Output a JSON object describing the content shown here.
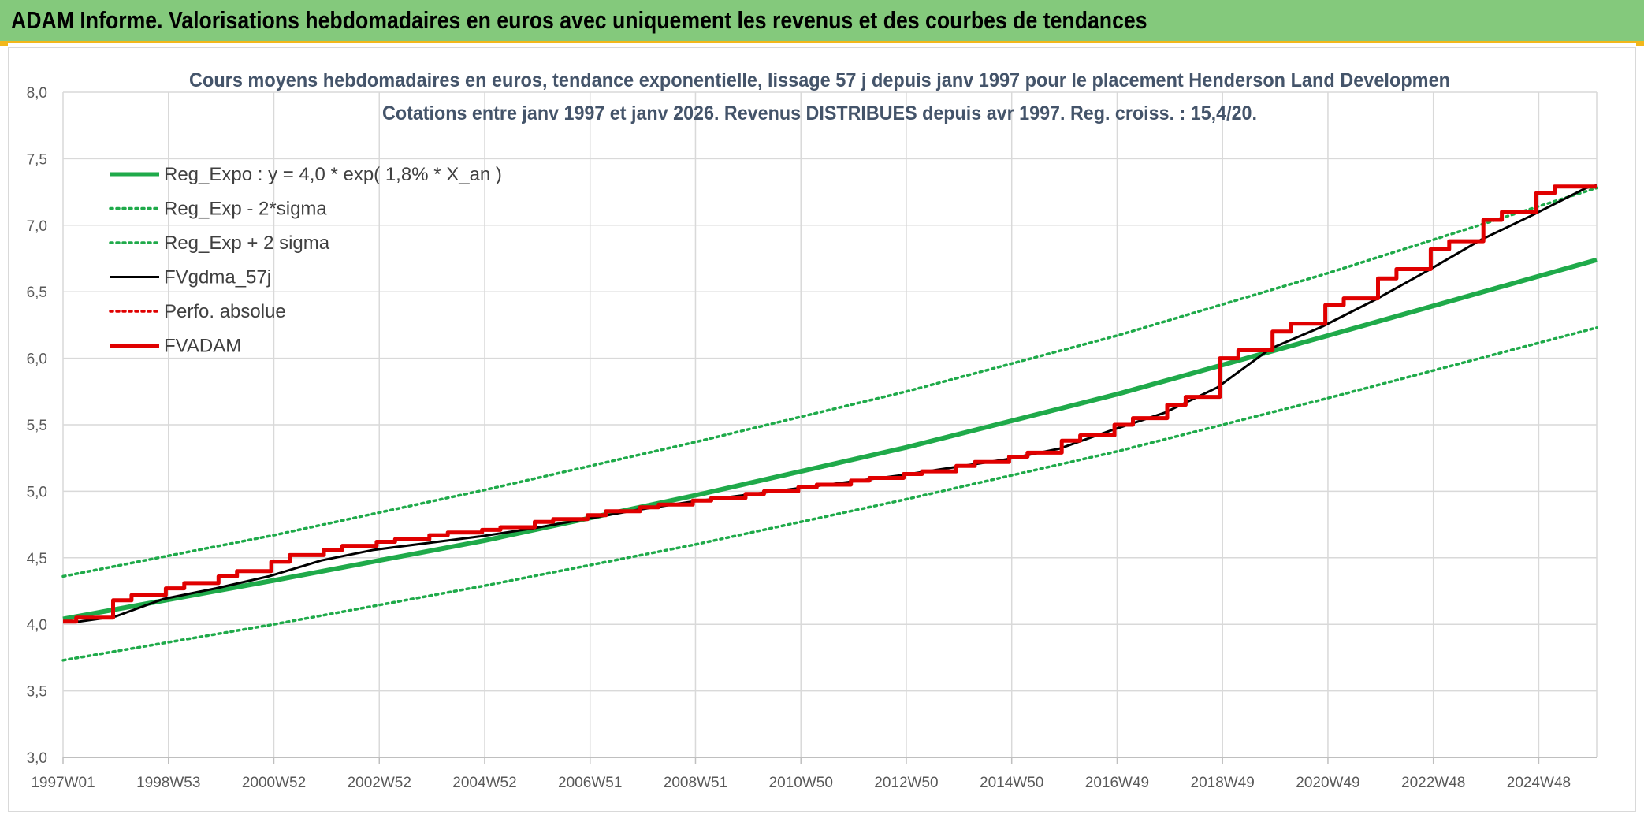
{
  "header": {
    "title": "ADAM Informe. Valorisations hebdomadaires en euros avec uniquement les revenus et des courbes de tendances"
  },
  "colors": {
    "banner": "#84c97c",
    "banner_border": "#f2b71a",
    "reg_green": "#1faa4a",
    "black": "#000000",
    "red": "#e00000",
    "grid": "#d9d9d9"
  },
  "chart_data": {
    "type": "line",
    "title_lines": [
      "Cours moyens hebdomadaires en euros, tendance exponentielle, lissage 57 j depuis janv 1997 pour le placement Henderson Land Developmen",
      "Cotations entre janv 1997 et janv 2026. Revenus DISTRIBUES depuis avr 1997. Reg. croiss. : 15,4/20."
    ],
    "ylim": [
      3.0,
      8.0
    ],
    "y_ticks": [
      "3,0",
      "3,5",
      "4,0",
      "4,5",
      "5,0",
      "5,5",
      "6,0",
      "6,5",
      "7,0",
      "7,5",
      "8,0"
    ],
    "x_range": [
      1997.0,
      2026.1
    ],
    "x_ticks": [
      {
        "label": "1997W01",
        "x": 1997.0
      },
      {
        "label": "1998W53",
        "x": 1999.0
      },
      {
        "label": "2000W52",
        "x": 2001.0
      },
      {
        "label": "2002W52",
        "x": 2003.0
      },
      {
        "label": "2004W52",
        "x": 2005.0
      },
      {
        "label": "2006W51",
        "x": 2007.0
      },
      {
        "label": "2008W51",
        "x": 2009.0
      },
      {
        "label": "2010W50",
        "x": 2011.0
      },
      {
        "label": "2012W50",
        "x": 2013.0
      },
      {
        "label": "2014W50",
        "x": 2015.0
      },
      {
        "label": "2016W49",
        "x": 2017.0
      },
      {
        "label": "2018W49",
        "x": 2019.0
      },
      {
        "label": "2020W49",
        "x": 2021.0
      },
      {
        "label": "2022W48",
        "x": 2023.0
      },
      {
        "label": "2024W48",
        "x": 2025.0
      }
    ],
    "grid": true,
    "legend_position": "top-left",
    "series": [
      {
        "name": "Reg_Expo : y = 4,0 * exp( 1,8% *  X_an )",
        "style": "solid-thick",
        "color": "#1faa4a",
        "points": [
          [
            1997.0,
            4.04
          ],
          [
            2001.0,
            4.33
          ],
          [
            2005.0,
            4.63
          ],
          [
            2009.0,
            4.97
          ],
          [
            2013.0,
            5.33
          ],
          [
            2017.0,
            5.73
          ],
          [
            2021.0,
            6.17
          ],
          [
            2026.1,
            6.74
          ]
        ]
      },
      {
        "name": "Reg_Exp - 2*sigma",
        "style": "dotted",
        "color": "#1faa4a",
        "points": [
          [
            1997.0,
            3.73
          ],
          [
            2001.0,
            4.0
          ],
          [
            2005.0,
            4.29
          ],
          [
            2009.0,
            4.6
          ],
          [
            2013.0,
            4.94
          ],
          [
            2017.0,
            5.3
          ],
          [
            2021.0,
            5.7
          ],
          [
            2026.1,
            6.23
          ]
        ]
      },
      {
        "name": "Reg_Exp + 2 sigma",
        "style": "dotted",
        "color": "#1faa4a",
        "points": [
          [
            1997.0,
            4.36
          ],
          [
            2001.0,
            4.67
          ],
          [
            2005.0,
            5.01
          ],
          [
            2009.0,
            5.37
          ],
          [
            2013.0,
            5.75
          ],
          [
            2017.0,
            6.17
          ],
          [
            2021.0,
            6.64
          ],
          [
            2026.1,
            7.28
          ]
        ]
      },
      {
        "name": "FVgdma_57j",
        "style": "solid",
        "color": "#000000",
        "points": [
          [
            1997.0,
            4.02
          ],
          [
            1997.3,
            4.02
          ],
          [
            1998.0,
            4.06
          ],
          [
            1998.9,
            4.19
          ],
          [
            1999.9,
            4.27
          ],
          [
            2000.9,
            4.36
          ],
          [
            2001.9,
            4.48
          ],
          [
            2002.9,
            4.56
          ],
          [
            2003.9,
            4.61
          ],
          [
            2004.9,
            4.66
          ],
          [
            2005.9,
            4.72
          ],
          [
            2006.9,
            4.79
          ],
          [
            2007.9,
            4.86
          ],
          [
            2008.9,
            4.92
          ],
          [
            2009.9,
            4.97
          ],
          [
            2010.9,
            5.02
          ],
          [
            2011.9,
            5.07
          ],
          [
            2012.9,
            5.12
          ],
          [
            2013.9,
            5.18
          ],
          [
            2014.9,
            5.24
          ],
          [
            2015.9,
            5.32
          ],
          [
            2016.9,
            5.46
          ],
          [
            2017.9,
            5.59
          ],
          [
            2018.9,
            5.78
          ],
          [
            2019.9,
            6.07
          ],
          [
            2020.9,
            6.24
          ],
          [
            2021.9,
            6.44
          ],
          [
            2022.9,
            6.66
          ],
          [
            2023.9,
            6.89
          ],
          [
            2024.9,
            7.08
          ],
          [
            2025.9,
            7.28
          ],
          [
            2026.1,
            7.3
          ]
        ]
      },
      {
        "name": "Perfo. absolue",
        "style": "dotted",
        "color": "#e00000",
        "points": []
      },
      {
        "name": "FVADAM",
        "style": "step-thick",
        "color": "#e00000",
        "points": [
          [
            1997.0,
            4.02
          ],
          [
            1997.25,
            4.02
          ],
          [
            1997.25,
            4.05
          ],
          [
            1997.95,
            4.05
          ],
          [
            1997.95,
            4.18
          ],
          [
            1998.3,
            4.18
          ],
          [
            1998.3,
            4.22
          ],
          [
            1998.95,
            4.22
          ],
          [
            1998.95,
            4.27
          ],
          [
            1999.3,
            4.27
          ],
          [
            1999.3,
            4.31
          ],
          [
            1999.95,
            4.31
          ],
          [
            1999.95,
            4.36
          ],
          [
            2000.3,
            4.36
          ],
          [
            2000.3,
            4.4
          ],
          [
            2000.95,
            4.4
          ],
          [
            2000.95,
            4.47
          ],
          [
            2001.3,
            4.47
          ],
          [
            2001.3,
            4.52
          ],
          [
            2001.95,
            4.52
          ],
          [
            2001.95,
            4.56
          ],
          [
            2002.3,
            4.56
          ],
          [
            2002.3,
            4.59
          ],
          [
            2002.95,
            4.59
          ],
          [
            2002.95,
            4.62
          ],
          [
            2003.3,
            4.62
          ],
          [
            2003.3,
            4.64
          ],
          [
            2003.95,
            4.64
          ],
          [
            2003.95,
            4.67
          ],
          [
            2004.3,
            4.67
          ],
          [
            2004.3,
            4.69
          ],
          [
            2004.95,
            4.69
          ],
          [
            2004.95,
            4.71
          ],
          [
            2005.3,
            4.71
          ],
          [
            2005.3,
            4.73
          ],
          [
            2005.95,
            4.73
          ],
          [
            2005.95,
            4.77
          ],
          [
            2006.3,
            4.77
          ],
          [
            2006.3,
            4.79
          ],
          [
            2006.95,
            4.79
          ],
          [
            2006.95,
            4.82
          ],
          [
            2007.3,
            4.82
          ],
          [
            2007.3,
            4.85
          ],
          [
            2007.95,
            4.85
          ],
          [
            2007.95,
            4.88
          ],
          [
            2008.3,
            4.88
          ],
          [
            2008.3,
            4.9
          ],
          [
            2008.95,
            4.9
          ],
          [
            2008.95,
            4.93
          ],
          [
            2009.3,
            4.93
          ],
          [
            2009.3,
            4.95
          ],
          [
            2009.95,
            4.95
          ],
          [
            2009.95,
            4.98
          ],
          [
            2010.3,
            4.98
          ],
          [
            2010.3,
            5.0
          ],
          [
            2010.95,
            5.0
          ],
          [
            2010.95,
            5.03
          ],
          [
            2011.3,
            5.03
          ],
          [
            2011.3,
            5.05
          ],
          [
            2011.95,
            5.05
          ],
          [
            2011.95,
            5.08
          ],
          [
            2012.3,
            5.08
          ],
          [
            2012.3,
            5.1
          ],
          [
            2012.95,
            5.1
          ],
          [
            2012.95,
            5.13
          ],
          [
            2013.3,
            5.13
          ],
          [
            2013.3,
            5.15
          ],
          [
            2013.95,
            5.15
          ],
          [
            2013.95,
            5.19
          ],
          [
            2014.3,
            5.19
          ],
          [
            2014.3,
            5.22
          ],
          [
            2014.95,
            5.22
          ],
          [
            2014.95,
            5.26
          ],
          [
            2015.3,
            5.26
          ],
          [
            2015.3,
            5.29
          ],
          [
            2015.95,
            5.29
          ],
          [
            2015.95,
            5.38
          ],
          [
            2016.3,
            5.38
          ],
          [
            2016.3,
            5.42
          ],
          [
            2016.95,
            5.42
          ],
          [
            2016.95,
            5.5
          ],
          [
            2017.3,
            5.5
          ],
          [
            2017.3,
            5.55
          ],
          [
            2017.95,
            5.55
          ],
          [
            2017.95,
            5.65
          ],
          [
            2018.3,
            5.65
          ],
          [
            2018.3,
            5.71
          ],
          [
            2018.95,
            5.71
          ],
          [
            2018.95,
            6.0
          ],
          [
            2019.3,
            6.0
          ],
          [
            2019.3,
            6.06
          ],
          [
            2019.95,
            6.06
          ],
          [
            2019.95,
            6.2
          ],
          [
            2020.3,
            6.2
          ],
          [
            2020.3,
            6.26
          ],
          [
            2020.95,
            6.26
          ],
          [
            2020.95,
            6.4
          ],
          [
            2021.3,
            6.4
          ],
          [
            2021.3,
            6.45
          ],
          [
            2021.95,
            6.45
          ],
          [
            2021.95,
            6.6
          ],
          [
            2022.3,
            6.6
          ],
          [
            2022.3,
            6.67
          ],
          [
            2022.95,
            6.67
          ],
          [
            2022.95,
            6.82
          ],
          [
            2023.3,
            6.82
          ],
          [
            2023.3,
            6.88
          ],
          [
            2023.95,
            6.88
          ],
          [
            2023.95,
            7.04
          ],
          [
            2024.3,
            7.04
          ],
          [
            2024.3,
            7.1
          ],
          [
            2024.95,
            7.1
          ],
          [
            2024.95,
            7.24
          ],
          [
            2025.3,
            7.24
          ],
          [
            2025.3,
            7.29
          ],
          [
            2026.1,
            7.29
          ]
        ]
      }
    ]
  }
}
